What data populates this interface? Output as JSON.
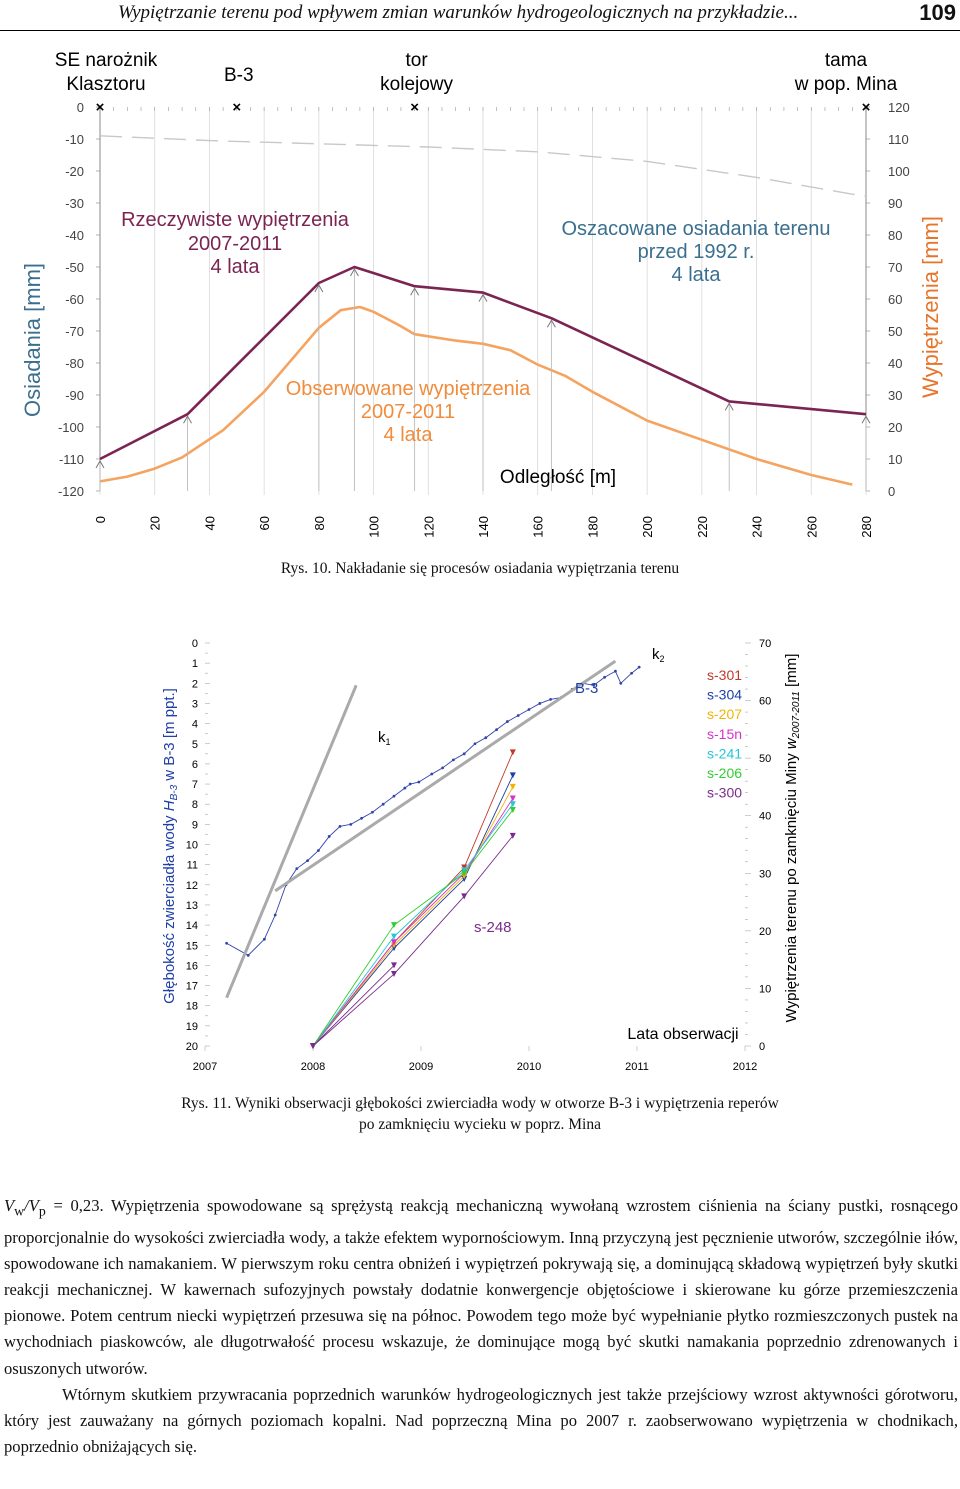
{
  "header": {
    "title": "Wypiętrzanie terenu pod wpływem zmian warunków hydrogeologicznych na przykładzie...",
    "page_number": "109"
  },
  "figure10": {
    "caption": "Rys. 10. Nakładanie się procesów osiadania wypiętrzania terenu",
    "locations": [
      {
        "line1": "SE narożnik",
        "line2": "Klasztoru",
        "x": 0
      },
      {
        "line1": "B-3",
        "line2": "",
        "x": 50
      },
      {
        "line1": "tor",
        "line2": "kolejowy",
        "x": 115
      },
      {
        "line1": "tama",
        "line2": "w pop. Mina",
        "x": 280
      }
    ],
    "labels": {
      "left_axis": "Osiadania [mm]",
      "right_axis": "Wypiętrzenia [mm]",
      "x_axis": "Odległość [m]",
      "real": [
        "Rzeczywiste wypiętrzenia",
        "2007-2011",
        "4 lata"
      ],
      "observed": [
        "Obserwowane wypiętrzenia",
        "2007-2011",
        "4 lata"
      ],
      "estimated": [
        "Oszacowane osiadania terenu",
        "przed 1992 r.",
        "4 lata"
      ]
    }
  },
  "figure11": {
    "caption_line1": "Rys. 11. Wyniki obserwacji głębokości zwierciadła wody w otworze B-3 i wypiętrzenia reperów",
    "caption_line2": "po zamknięciu wycieku w poprz. Mina",
    "labels": {
      "left_axis_pre": "Głębokość zwierciadła wody ",
      "left_axis_H": "H",
      "left_axis_sub": "B-3",
      "left_axis_post": " w B-3 [m ppt.]",
      "right_axis_pre": "Wypiętrzenia terenu po zamknięciu Miny ",
      "right_axis_w": "w",
      "right_axis_sub": "2007-2011",
      "right_axis_post": " [mm]",
      "x_axis": "Lata obserwacji",
      "k1": "k",
      "k1_sub": "1",
      "k2": "k",
      "k2_sub": "2",
      "b3": "B-3",
      "s248": "s-248"
    },
    "legend": [
      {
        "name": "s-301",
        "color": "#c0392b"
      },
      {
        "name": "s-304",
        "color": "#1f3fa8"
      },
      {
        "name": "s-207",
        "color": "#f0b400"
      },
      {
        "name": "s-15n",
        "color": "#d633c8"
      },
      {
        "name": "s-241",
        "color": "#22c6d6"
      },
      {
        "name": "s-206",
        "color": "#33cc33"
      },
      {
        "name": "s-300",
        "color": "#7a2c8c"
      }
    ]
  },
  "chart_data": [
    {
      "type": "line",
      "title": "",
      "xlabel": "Odległość [m]",
      "ylabel": "Osiadania [mm]",
      "y2label": "Wypiętrzenia [mm]",
      "xlim": [
        0,
        280
      ],
      "ylim": [
        -120,
        0
      ],
      "y2lim": [
        0,
        120
      ],
      "x_ticks": [
        0,
        20,
        40,
        60,
        80,
        100,
        120,
        140,
        160,
        180,
        200,
        220,
        240,
        260,
        280
      ],
      "y_ticks": [
        0,
        -10,
        -20,
        -30,
        -40,
        -50,
        -60,
        -70,
        -80,
        -90,
        -100,
        -110,
        -120
      ],
      "y2_ticks": [
        120,
        110,
        100,
        90,
        80,
        70,
        60,
        50,
        40,
        30,
        20,
        10,
        0
      ],
      "series": [
        {
          "name": "Rzeczywiste wypiętrzenia 2007-2011 4 lata",
          "color": "#7b2452",
          "x": [
            0,
            32,
            80,
            93,
            115,
            140,
            165,
            230,
            280
          ],
          "y": [
            10,
            24,
            65,
            70,
            64,
            62,
            54,
            28,
            24
          ]
        },
        {
          "name": "Obserwowane wypiętrzenia 2007-2011 4 lata",
          "color": "#f4a460",
          "x": [
            0,
            10,
            20,
            30,
            45,
            60,
            80,
            88,
            95,
            100,
            110,
            115,
            130,
            140,
            150,
            160,
            170,
            180,
            200,
            220,
            240,
            260,
            275
          ],
          "y": [
            3,
            4.5,
            7,
            10.5,
            19,
            31,
            51,
            56.5,
            57.5,
            56,
            51.5,
            49,
            47,
            46,
            44,
            39.5,
            36,
            31,
            22,
            16,
            10,
            5,
            2
          ]
        },
        {
          "name": "Oszacowane osiadania terenu przed 1992 r. 4 lata",
          "color": "#c8c8c8",
          "style": "dashed",
          "x": [
            0,
            40,
            80,
            120,
            160,
            200,
            240,
            280
          ],
          "y": [
            -9,
            -10.5,
            -11.5,
            -12.5,
            -14,
            -17,
            -22,
            -28
          ]
        }
      ]
    },
    {
      "type": "line",
      "title": "",
      "xlabel": "Lata obserwacji",
      "ylabel": "Głębokość zwierciadła wody H B-3 w B-3 [m ppt.]",
      "y2label": "Wypiętrzenia terenu po zamknięciu Miny w 2007-2011 [mm]",
      "xlim": [
        2007,
        2012
      ],
      "ylim": [
        20,
        0
      ],
      "y2lim": [
        0,
        70
      ],
      "x_ticks": [
        2007,
        2008,
        2009,
        2010,
        2011,
        2012
      ],
      "y_ticks": [
        0,
        1,
        2,
        3,
        4,
        5,
        6,
        7,
        8,
        9,
        10,
        11,
        12,
        13,
        14,
        15,
        16,
        17,
        18,
        19,
        20
      ],
      "y2_ticks": [
        0,
        10,
        20,
        30,
        40,
        50,
        60,
        70
      ],
      "series": [
        {
          "name": "B-3",
          "color": "#3344aa",
          "axis": "left",
          "x": [
            2007.2,
            2007.4,
            2007.55,
            2007.65,
            2007.75,
            2007.85,
            2007.95,
            2008.05,
            2008.15,
            2008.25,
            2008.35,
            2008.45,
            2008.55,
            2008.65,
            2008.75,
            2008.85,
            2008.9,
            2008.98,
            2009.1,
            2009.2,
            2009.3,
            2009.4,
            2009.5,
            2009.6,
            2009.7,
            2009.8,
            2009.9,
            2010.0,
            2010.1,
            2010.2,
            2010.3,
            2010.4,
            2010.5,
            2010.6,
            2010.7,
            2010.8,
            2010.85,
            2010.95,
            2011.02
          ],
          "y": [
            14.9,
            15.5,
            14.7,
            13.5,
            12.0,
            11.2,
            10.8,
            10.3,
            9.6,
            9.1,
            9.0,
            8.7,
            8.4,
            8.0,
            7.6,
            7.2,
            7.0,
            6.9,
            6.5,
            6.2,
            5.8,
            5.5,
            5.0,
            4.7,
            4.3,
            3.9,
            3.6,
            3.3,
            3.0,
            2.8,
            2.7,
            2.3,
            2.0,
            2.1,
            1.7,
            1.4,
            2.0,
            1.5,
            1.2
          ]
        },
        {
          "name": "s-301",
          "color": "#c0392b",
          "axis": "right",
          "x": [
            2008.0,
            2008.75,
            2009.4,
            2009.85
          ],
          "y": [
            0,
            18,
            31,
            51
          ]
        },
        {
          "name": "s-304",
          "color": "#1f3fa8",
          "axis": "right",
          "x": [
            2008.0,
            2008.75,
            2009.4,
            2009.85
          ],
          "y": [
            0,
            17,
            29,
            47
          ]
        },
        {
          "name": "s-207",
          "color": "#f0b400",
          "axis": "right",
          "x": [
            2008.0,
            2008.75,
            2009.4,
            2009.85
          ],
          "y": [
            0,
            17.5,
            29.5,
            45
          ]
        },
        {
          "name": "s-15n",
          "color": "#d633c8",
          "axis": "right",
          "x": [
            2008.0,
            2008.75,
            2009.4,
            2009.85
          ],
          "y": [
            0,
            18,
            30,
            43
          ]
        },
        {
          "name": "s-241",
          "color": "#22c6d6",
          "axis": "right",
          "x": [
            2008.0,
            2008.75,
            2009.4,
            2009.85
          ],
          "y": [
            0,
            19,
            30.5,
            42
          ]
        },
        {
          "name": "s-206",
          "color": "#33cc33",
          "axis": "right",
          "x": [
            2008.0,
            2008.75,
            2009.4,
            2009.85
          ],
          "y": [
            0,
            21,
            30,
            41
          ]
        },
        {
          "name": "s-300",
          "color": "#7a2c8c",
          "axis": "right",
          "x": [
            2008.0,
            2008.75,
            2009.4,
            2009.85
          ],
          "y": [
            0,
            12.5,
            26,
            36.5
          ]
        },
        {
          "name": "s-248",
          "color": "#7a2c8c",
          "axis": "right",
          "x": [
            2008.0,
            2008.75
          ],
          "y": [
            0,
            14
          ]
        },
        {
          "name": "k1",
          "color": "#aaaaaa",
          "axis": "left",
          "x": [
            2007.2,
            2008.4
          ],
          "y": [
            17.6,
            2.1
          ]
        },
        {
          "name": "k2",
          "color": "#aaaaaa",
          "axis": "left",
          "x": [
            2007.65,
            2010.8
          ],
          "y": [
            12.3,
            0.9
          ]
        }
      ]
    }
  ],
  "text": {
    "p1_vw": "V",
    "p1_w": "w",
    "p1_slash": "/V",
    "p1_p": "p",
    "p1_rest": " = 0,23. Wypiętrzenia spowodowane są sprężystą reakcją mechaniczną wywołaną wzrostem ciśnienia na ściany pustki, rosnącego proporcjonalnie do wysokości zwierciadła wody, a także efektem wypornościowym. Inną przyczyną jest pęcznienie utworów, szczególnie iłów, spowodowane ich namakaniem. W pierwszym roku centra obniżeń i wypiętrzeń pokrywają się, a dominującą składową wypiętrzeń były skutki reakcji mechanicznej. W kawernach sufozyjnych powstały dodatnie konwergencje objętościowe i skierowane ku górze przemieszczenia pionowe. Potem centrum niecki wypiętrzeń przesuwa się na północ. Powodem tego może być wypełnianie płytko rozmieszczonych pustek na wychodniach piaskowców, ale długotrwałość procesu wskazuje, że dominujące mogą być skutki namakania poprzednio zdrenowanych i osuszonych utworów.",
    "p2": "Wtórnym skutkiem przywracania poprzednich warunków hydrogeologicznych jest także przejściowy wzrost aktywności górotworu, który jest zauważany na górnych poziomach kopalni. Nad poprzeczną Mina po 2007 r. zaobserwowano wypiętrzenia w chodnikach, poprzednio obniżających się."
  }
}
